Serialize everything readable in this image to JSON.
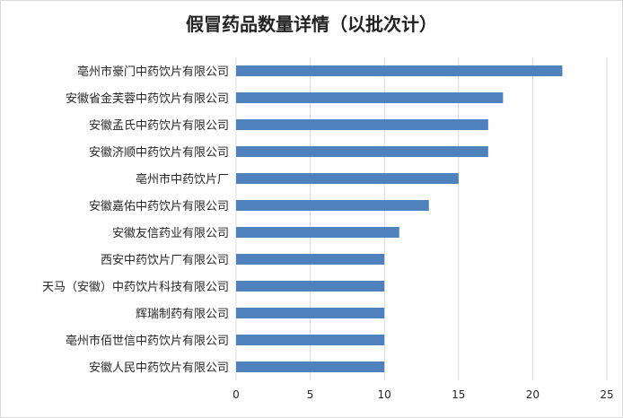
{
  "chart_data": {
    "type": "bar",
    "orientation": "horizontal",
    "title": "假冒药品数量详情（以批次计）",
    "xlabel": "",
    "ylabel": "",
    "categories": [
      "亳州市豪门中药饮片有限公司",
      "安徽省金芙蓉中药饮片有限公司",
      "安徽孟氏中药饮片有限公司",
      "安徽济顺中药饮片有限公司",
      "亳州市中药饮片厂",
      "安徽嘉佑中药饮片有限公司",
      "安徽友信药业有限公司",
      "西安中药饮片厂有限公司",
      "天马（安徽）中药饮片科技有限公司",
      "辉瑞制药有限公司",
      "亳州市佰世信中药饮片有限公司",
      "安徽人民中药饮片有限公司"
    ],
    "values": [
      22,
      18,
      17,
      17,
      15,
      13,
      11,
      10,
      10,
      10,
      10,
      10
    ],
    "xlim": [
      0,
      25
    ],
    "xticks": [
      0,
      5,
      10,
      15,
      20,
      25
    ],
    "grid": "vertical",
    "legend": "none",
    "bar_color": "#4f81bd",
    "grid_color": "#d9d9d9"
  }
}
